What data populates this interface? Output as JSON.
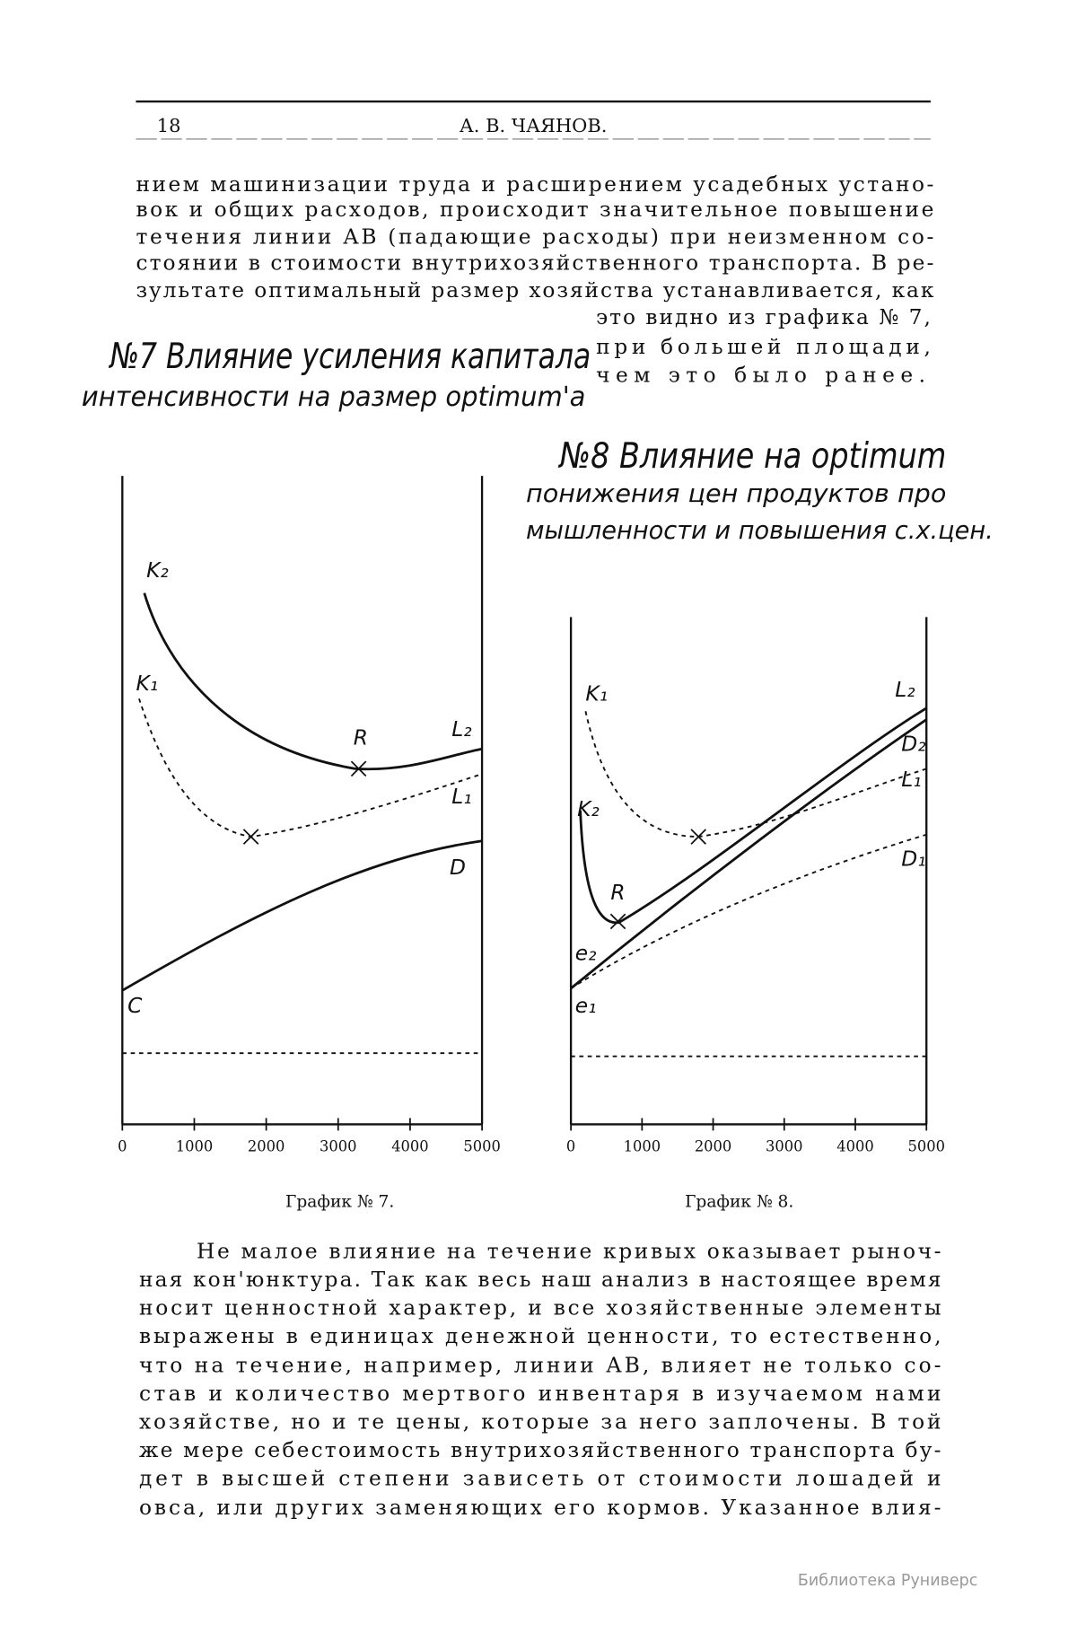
{
  "header": {
    "page_number": "18",
    "running_title": "А. В. ЧАЯНОВ."
  },
  "paragraph_1": [
    "нием машинизации труда и расширением усадебных устано-",
    "вок и общих расходов, происходит значительное повышение",
    "течения линии АВ (падающие расходы) при неизменном со-",
    "стоянии в стоимости внутрихозяйственного транспорта. В ре-",
    "зультате оптимальный размер хозяйства устанавливается, как",
    "это видно из графика № 7,",
    "при большей площади,",
    "чем это было ранее."
  ],
  "chart_7": {
    "type": "line",
    "title": [
      "№7 Влияние усиления капитала",
      "интенсивности на размер optimum'a"
    ],
    "curve_labels": [
      "K₂",
      "K₁",
      "R",
      "L₂",
      "L₁",
      "D",
      "C"
    ],
    "xlim": [
      0,
      5000
    ],
    "xticks": [
      0,
      1000,
      2000,
      3000,
      4000,
      5000
    ],
    "caption": "График № 7."
  },
  "chart_8": {
    "type": "line",
    "title": [
      "№8 Влияние на optimum",
      "понижения цен продуктов про",
      "мышленности и повышения с.х.цен."
    ],
    "curve_labels": [
      "K₁",
      "L₂",
      "D₂",
      "L₁",
      "K₂",
      "D₁",
      "R",
      "e₂",
      "e₁"
    ],
    "xlim": [
      0,
      5000
    ],
    "xticks": [
      0,
      1000,
      2000,
      3000,
      4000,
      5000
    ],
    "caption": "График № 8."
  },
  "paragraph_2": [
    "Не малое влияние на течение кривых оказывает рыноч-",
    "ная кон'юнктура. Так как весь наш анализ в настоящее время",
    "носит ценностной характер, и все хозяйственные элементы",
    "выражены в единицах денежной ценности, то естественно,",
    "что на течение, например, линии АВ, влияет не только со-",
    "став и количество мертвого инвентаря в изучаемом нами",
    "хозяйстве, но и те цены, которые за него заплочены. В той",
    "же мере себестоимость внутрихозяйственного транспорта бу-",
    "дет в высшей степени зависеть от стоимости лошадей и",
    "овса, или других заменяющих его кормов. Указанное влия-"
  ],
  "watermark": "Библиотека Руниверс"
}
